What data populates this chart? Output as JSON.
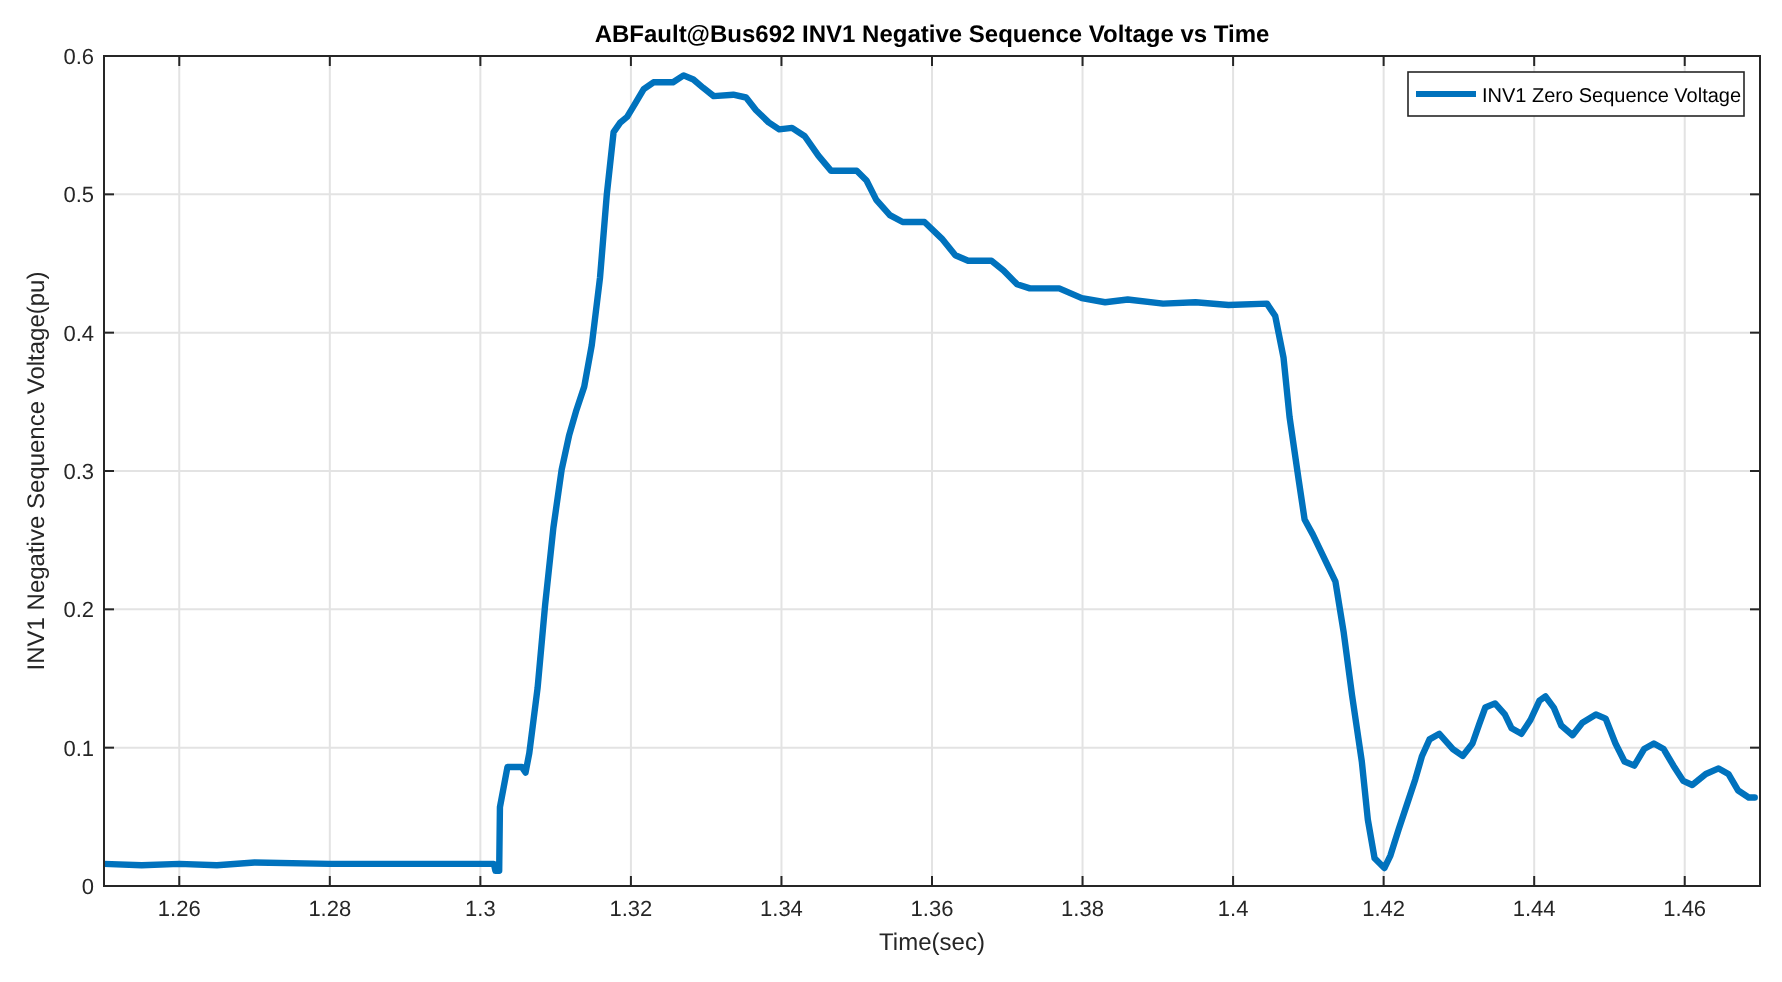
{
  "chart_data": {
    "type": "line",
    "title": "ABFault@Bus692 INV1 Negative Sequence Voltage vs Time",
    "xlabel": "Time(sec)",
    "ylabel": "INV1 Negative Sequence Voltage(pu)",
    "xlim": [
      1.25,
      1.47
    ],
    "ylim": [
      0,
      0.6
    ],
    "xticks": [
      1.26,
      1.28,
      1.3,
      1.32,
      1.34,
      1.36,
      1.38,
      1.4,
      1.42,
      1.44,
      1.46
    ],
    "yticks": [
      0,
      0.1,
      0.2,
      0.3,
      0.4,
      0.5,
      0.6
    ],
    "grid": true,
    "legend": "top right",
    "marker": "none",
    "line_style": "solid",
    "series": [
      {
        "name": "INV1 Zero Sequence Voltage",
        "color": "#0072bd",
        "x": [
          1.25,
          1.255,
          1.26,
          1.265,
          1.27,
          1.28,
          1.29,
          1.3,
          1.3018,
          1.302,
          1.3025,
          1.3026,
          1.3036,
          1.3055,
          1.306,
          1.3065,
          1.3076,
          1.3086,
          1.3097,
          1.3108,
          1.3118,
          1.3127,
          1.3138,
          1.3148,
          1.3159,
          1.3168,
          1.3177,
          1.3186,
          1.3195,
          1.3205,
          1.3217,
          1.323,
          1.3256,
          1.327,
          1.3283,
          1.3296,
          1.331,
          1.3336,
          1.3353,
          1.3366,
          1.3383,
          1.3397,
          1.3414,
          1.3431,
          1.3449,
          1.3466,
          1.35,
          1.3513,
          1.3526,
          1.3544,
          1.3561,
          1.359,
          1.3613,
          1.3631,
          1.3648,
          1.3679,
          1.3695,
          1.3713,
          1.373,
          1.3769,
          1.3799,
          1.383,
          1.386,
          1.3907,
          1.395,
          1.3994,
          1.4045,
          1.4056,
          1.4067,
          1.4075,
          1.4087,
          1.4095,
          1.4106,
          1.4136,
          1.4147,
          1.4158,
          1.4171,
          1.4179,
          1.4188,
          1.4201,
          1.4209,
          1.422,
          1.4231,
          1.4242,
          1.4251,
          1.4261,
          1.4274,
          1.4292,
          1.4305,
          1.4318,
          1.4327,
          1.4335,
          1.4348,
          1.4361,
          1.437,
          1.4383,
          1.4395,
          1.4407,
          1.4415,
          1.4426,
          1.4436,
          1.4451,
          1.4464,
          1.4482,
          1.4495,
          1.4508,
          1.452,
          1.4533,
          1.4546,
          1.4559,
          1.4572,
          1.4585,
          1.4598,
          1.461,
          1.4628,
          1.4645,
          1.4658,
          1.4671,
          1.4685,
          1.4693
        ],
        "values": [
          0.016,
          0.015,
          0.016,
          0.015,
          0.017,
          0.016,
          0.016,
          0.016,
          0.016,
          0.011,
          0.011,
          0.057,
          0.086,
          0.086,
          0.082,
          0.096,
          0.143,
          0.203,
          0.259,
          0.301,
          0.326,
          0.343,
          0.361,
          0.391,
          0.44,
          0.5,
          0.545,
          0.552,
          0.556,
          0.565,
          0.576,
          0.581,
          0.581,
          0.586,
          0.583,
          0.577,
          0.571,
          0.572,
          0.57,
          0.561,
          0.552,
          0.547,
          0.548,
          0.542,
          0.528,
          0.517,
          0.517,
          0.51,
          0.496,
          0.485,
          0.48,
          0.48,
          0.468,
          0.456,
          0.452,
          0.452,
          0.445,
          0.435,
          0.432,
          0.432,
          0.425,
          0.422,
          0.424,
          0.421,
          0.422,
          0.42,
          0.421,
          0.412,
          0.382,
          0.339,
          0.294,
          0.265,
          0.254,
          0.22,
          0.183,
          0.138,
          0.09,
          0.048,
          0.02,
          0.013,
          0.022,
          0.041,
          0.059,
          0.077,
          0.094,
          0.106,
          0.11,
          0.099,
          0.094,
          0.103,
          0.117,
          0.129,
          0.132,
          0.124,
          0.114,
          0.11,
          0.12,
          0.134,
          0.137,
          0.129,
          0.116,
          0.109,
          0.118,
          0.124,
          0.121,
          0.103,
          0.09,
          0.087,
          0.099,
          0.103,
          0.099,
          0.087,
          0.076,
          0.073,
          0.081,
          0.085,
          0.081,
          0.069,
          0.064,
          0.064
        ]
      }
    ]
  }
}
